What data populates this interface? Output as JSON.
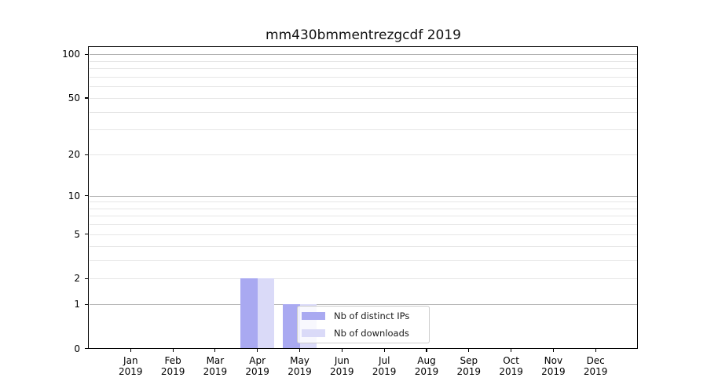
{
  "title": "mm430bmmentrezgcdf 2019",
  "chart_data": {
    "type": "bar",
    "title": "mm430bmmentrezgcdf 2019",
    "x_axis": {
      "categories": [
        "Jan",
        "Feb",
        "Mar",
        "Apr",
        "May",
        "Jun",
        "Jul",
        "Aug",
        "Sep",
        "Oct",
        "Nov",
        "Dec"
      ],
      "year": "2019"
    },
    "y_axis": {
      "scale": "symlog: y proportional to log10(1+value)",
      "tick_labels": [
        0,
        1,
        2,
        5,
        10,
        20,
        50,
        100
      ],
      "decade_gridlines": [
        1,
        10,
        100
      ],
      "minor_gridlines": [
        3,
        4,
        6,
        7,
        8,
        9,
        30,
        40,
        60,
        70,
        80,
        90
      ],
      "ylim": [
        0,
        114
      ],
      "grid": "on"
    },
    "series": [
      {
        "name": "Nb of distinct IPs",
        "color": "#a9a9f1",
        "values": [
          0,
          0,
          0,
          2,
          1,
          0,
          0,
          0,
          0,
          0,
          0,
          0
        ]
      },
      {
        "name": "Nb of downloads",
        "color": "#dadaf8",
        "values": [
          0,
          0,
          0,
          2,
          1,
          0,
          0,
          0,
          0,
          0,
          0,
          0
        ]
      }
    ],
    "legend": {
      "position": "bottom-center-inside",
      "entries": [
        "Nb of distinct IPs",
        "Nb of downloads"
      ]
    },
    "colors": {
      "decade_gridline": "#b2b2b2",
      "light_gridline": "#e6e6e6",
      "spine": "#000000",
      "background": "#ffffff"
    }
  }
}
